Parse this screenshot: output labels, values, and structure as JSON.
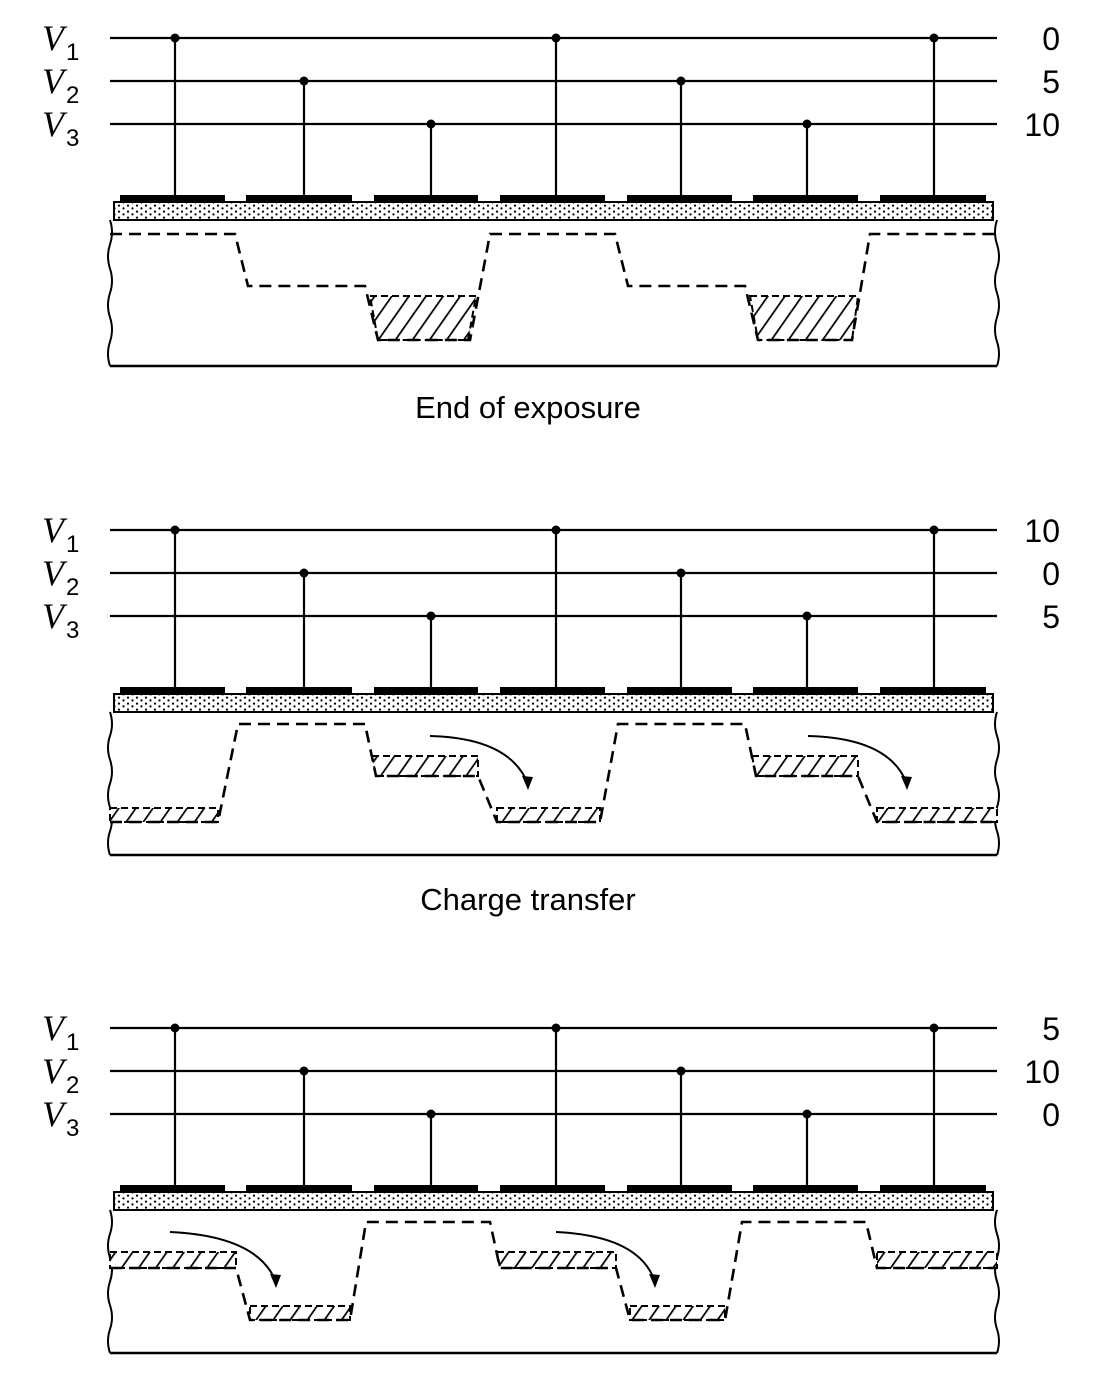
{
  "panels": [
    {
      "caption": "End of exposure",
      "rails": [
        {
          "name": "V",
          "sub": "1",
          "voltage": "0"
        },
        {
          "name": "V",
          "sub": "2",
          "voltage": "5"
        },
        {
          "name": "V",
          "sub": "3",
          "voltage": "10"
        }
      ]
    },
    {
      "caption": "Charge transfer",
      "rails": [
        {
          "name": "V",
          "sub": "1",
          "voltage": "10"
        },
        {
          "name": "V",
          "sub": "2",
          "voltage": "0"
        },
        {
          "name": "V",
          "sub": "3",
          "voltage": "5"
        }
      ]
    },
    {
      "caption": "",
      "rails": [
        {
          "name": "V",
          "sub": "1",
          "voltage": "5"
        },
        {
          "name": "V",
          "sub": "2",
          "voltage": "10"
        },
        {
          "name": "V",
          "sub": "3",
          "voltage": "0"
        }
      ]
    }
  ]
}
